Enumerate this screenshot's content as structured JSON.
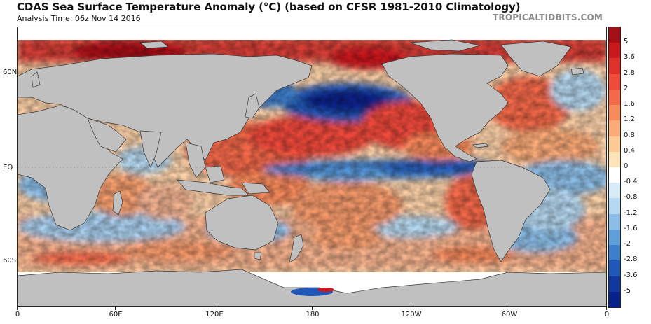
{
  "header": {
    "title": "CDAS Sea Surface Temperature Anomaly (°C) (based on CFSR 1981-2010 Climatology)",
    "analysis_time": "Analysis Time: 06z Nov 14 2016",
    "credit": "TROPICALTIDBITS.COM"
  },
  "map": {
    "lat_labels": [
      "60N",
      "EQ",
      "60S"
    ],
    "lon_labels": [
      "0",
      "60E",
      "120E",
      "180",
      "120W",
      "60W",
      "0"
    ],
    "land_color": "#c0c0c0",
    "no_data_color": "#ffffff"
  },
  "colorbar": {
    "labels": [
      "5",
      "3.6",
      "2.8",
      "2",
      "1.6",
      "1.2",
      "0.8",
      "0.4",
      "0",
      "-0.4",
      "-0.8",
      "-1.2",
      "-1.6",
      "-2",
      "-2.8",
      "-3.6",
      "-5"
    ],
    "colors": [
      "#a50f15",
      "#cb181d",
      "#e0302a",
      "#ef4a3a",
      "#f4694a",
      "#f88a5c",
      "#fbab78",
      "#fdc995",
      "#fde3b8",
      "#ffffff",
      "#d8ecf8",
      "#b6d8f0",
      "#8cbde6",
      "#5f9fda",
      "#3c7ecb",
      "#2158b8",
      "#1238a0",
      "#08208a"
    ]
  }
}
